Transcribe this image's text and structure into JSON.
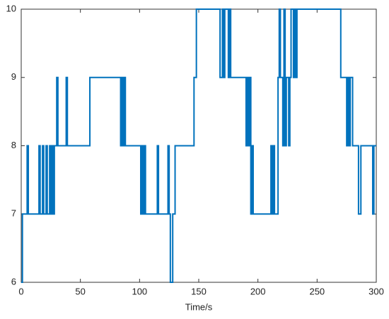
{
  "chart_data": {
    "type": "line",
    "step": "post",
    "xlabel": "Time/s",
    "color": "#0072bd",
    "x": [
      0,
      1,
      5,
      6,
      15,
      16,
      18,
      19,
      21,
      22,
      24,
      25,
      26,
      27,
      28,
      30,
      31,
      38,
      39,
      58,
      84,
      85,
      86,
      87,
      88,
      101,
      102,
      103,
      104,
      105,
      115,
      116,
      124,
      125,
      126,
      128,
      130,
      146,
      148,
      168,
      170,
      171,
      172,
      175,
      176,
      177,
      190,
      191,
      192,
      193,
      194,
      195,
      196,
      211,
      212,
      213,
      214,
      217,
      218,
      219,
      221,
      222,
      223,
      224,
      226,
      227,
      228,
      230,
      231,
      232,
      233,
      270,
      275,
      276,
      277,
      278,
      280,
      285,
      287,
      297,
      298,
      300
    ],
    "values": [
      6,
      7,
      8,
      7,
      8,
      7,
      8,
      7,
      8,
      7,
      8,
      7,
      8,
      7,
      8,
      9,
      8,
      9,
      8,
      9,
      8,
      9,
      8,
      9,
      8,
      7,
      8,
      7,
      8,
      7,
      8,
      7,
      8,
      7,
      6,
      7,
      8,
      9,
      10,
      9,
      10,
      9,
      10,
      9,
      10,
      9,
      8,
      9,
      8,
      9,
      7,
      8,
      7,
      8,
      7,
      8,
      7,
      9,
      10,
      9,
      8,
      10,
      8,
      9,
      8,
      9,
      10,
      9,
      10,
      9,
      10,
      9,
      8,
      9,
      8,
      9,
      8,
      7,
      8,
      7,
      8,
      8
    ],
    "xlim": [
      0,
      300
    ],
    "ylim": [
      6,
      10
    ],
    "xticks": [
      0,
      50,
      100,
      150,
      200,
      250,
      300
    ],
    "yticks": [
      6,
      7,
      8,
      9,
      10
    ]
  }
}
